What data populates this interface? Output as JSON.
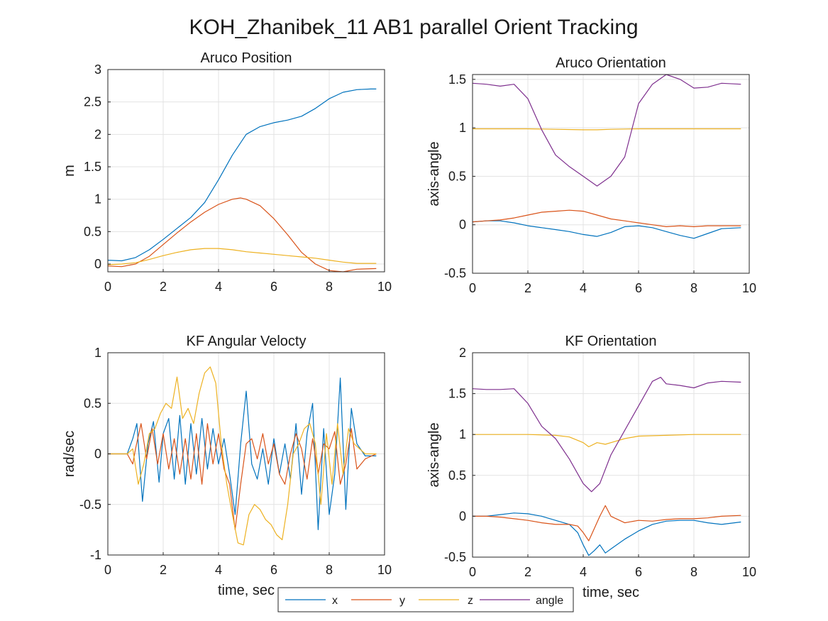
{
  "figure": {
    "title": "KOH_Zhanibek_11 AB1 parallel Orient Tracking",
    "colors": {
      "x": "#0072BD",
      "y": "#D95319",
      "z": "#EDB120",
      "angle": "#7E2F8E",
      "grid": "#e3e3e3",
      "axis": "#262626"
    }
  },
  "legend": {
    "items": [
      {
        "key": "x",
        "label": "x"
      },
      {
        "key": "y",
        "label": "y"
      },
      {
        "key": "z",
        "label": "z"
      },
      {
        "key": "angle",
        "label": "angle"
      }
    ]
  },
  "chart_data": [
    {
      "type": "line",
      "title": "Aruco Position",
      "xlabel": "",
      "ylabel": "m",
      "xlim": [
        0,
        10
      ],
      "ylim": [
        -0.12,
        3
      ],
      "xticks": [
        0,
        2,
        4,
        6,
        8,
        10
      ],
      "yticks": [
        0,
        0.5,
        1,
        1.5,
        2,
        2.5,
        3
      ],
      "grid": true,
      "series": [
        {
          "name": "x",
          "x": [
            0,
            0.5,
            1,
            1.5,
            2,
            2.5,
            3,
            3.5,
            4,
            4.5,
            5,
            5.5,
            6,
            6.5,
            7,
            7.5,
            8,
            8.5,
            9,
            9.5,
            9.7
          ],
          "y": [
            0.06,
            0.05,
            0.1,
            0.22,
            0.38,
            0.55,
            0.72,
            0.95,
            1.3,
            1.68,
            2.0,
            2.12,
            2.18,
            2.22,
            2.28,
            2.4,
            2.55,
            2.65,
            2.69,
            2.7,
            2.7
          ]
        },
        {
          "name": "y",
          "x": [
            0,
            0.5,
            1,
            1.5,
            2,
            2.5,
            3,
            3.5,
            4,
            4.5,
            4.8,
            5,
            5.5,
            6,
            6.5,
            7,
            7.5,
            8,
            8.5,
            9,
            9.7
          ],
          "y": [
            -0.03,
            -0.04,
            0.0,
            0.12,
            0.3,
            0.48,
            0.65,
            0.8,
            0.92,
            1.0,
            1.02,
            1.0,
            0.9,
            0.7,
            0.45,
            0.18,
            0.0,
            -0.1,
            -0.12,
            -0.08,
            -0.07
          ]
        },
        {
          "name": "z",
          "x": [
            0,
            0.5,
            1,
            1.5,
            2,
            2.5,
            3,
            3.5,
            4,
            4.5,
            5,
            5.5,
            6,
            6.5,
            7,
            7.5,
            8,
            8.5,
            9,
            9.7
          ],
          "y": [
            -0.01,
            0.0,
            0.02,
            0.07,
            0.13,
            0.18,
            0.22,
            0.24,
            0.24,
            0.22,
            0.19,
            0.17,
            0.15,
            0.13,
            0.11,
            0.09,
            0.06,
            0.03,
            0.01,
            0.01
          ]
        }
      ]
    },
    {
      "type": "line",
      "title": "Aruco Orientation",
      "xlabel": "",
      "ylabel": "axis-angle",
      "xlim": [
        0,
        10
      ],
      "ylim": [
        -0.5,
        1.55
      ],
      "xticks": [
        0,
        2,
        4,
        6,
        8,
        10
      ],
      "yticks": [
        -0.5,
        0,
        0.5,
        1,
        1.5
      ],
      "grid": true,
      "series": [
        {
          "name": "x",
          "x": [
            0,
            0.5,
            1,
            1.5,
            2,
            2.5,
            3,
            3.5,
            4,
            4.5,
            5,
            5.5,
            6,
            6.5,
            7,
            7.5,
            8,
            8.5,
            9,
            9.7
          ],
          "y": [
            0.03,
            0.04,
            0.04,
            0.02,
            -0.01,
            -0.03,
            -0.05,
            -0.07,
            -0.1,
            -0.12,
            -0.08,
            -0.02,
            -0.01,
            -0.03,
            -0.07,
            -0.11,
            -0.14,
            -0.09,
            -0.04,
            -0.03
          ]
        },
        {
          "name": "y",
          "x": [
            0,
            0.5,
            1,
            1.5,
            2,
            2.5,
            3,
            3.5,
            4,
            4.5,
            5,
            5.5,
            6,
            6.5,
            7,
            7.5,
            8,
            8.5,
            9,
            9.7
          ],
          "y": [
            0.03,
            0.04,
            0.05,
            0.07,
            0.1,
            0.13,
            0.14,
            0.15,
            0.14,
            0.1,
            0.06,
            0.04,
            0.02,
            0.0,
            -0.02,
            -0.01,
            -0.02,
            -0.01,
            -0.01,
            -0.01
          ]
        },
        {
          "name": "z",
          "x": [
            0,
            1,
            2,
            3,
            4,
            4.5,
            5,
            6,
            7,
            8,
            9,
            9.7
          ],
          "y": [
            0.99,
            0.99,
            0.99,
            0.985,
            0.98,
            0.98,
            0.985,
            0.99,
            0.99,
            0.99,
            0.99,
            0.99
          ]
        },
        {
          "name": "angle",
          "x": [
            0,
            0.5,
            1,
            1.5,
            2,
            2.5,
            3,
            3.5,
            4,
            4.5,
            5,
            5.5,
            6,
            6.5,
            7,
            7.5,
            8,
            8.5,
            9,
            9.7
          ],
          "y": [
            1.46,
            1.45,
            1.43,
            1.45,
            1.3,
            0.98,
            0.72,
            0.6,
            0.5,
            0.4,
            0.5,
            0.7,
            1.25,
            1.45,
            1.55,
            1.5,
            1.41,
            1.42,
            1.46,
            1.45
          ]
        }
      ]
    },
    {
      "type": "line",
      "title": "KF Angular Velocty",
      "xlabel": "time, sec",
      "ylabel": "rad/sec",
      "xlim": [
        0,
        10
      ],
      "ylim": [
        -1,
        1
      ],
      "xticks": [
        0,
        2,
        4,
        6,
        8,
        10
      ],
      "yticks": [
        -1,
        -0.5,
        0,
        0.5,
        1
      ],
      "grid": true,
      "series": [
        {
          "name": "x",
          "x": [
            0,
            0.7,
            0.9,
            1.05,
            1.25,
            1.45,
            1.65,
            1.85,
            2.0,
            2.2,
            2.4,
            2.6,
            2.8,
            3.0,
            3.2,
            3.4,
            3.6,
            3.8,
            4.0,
            4.2,
            4.4,
            4.6,
            4.8,
            5.0,
            5.2,
            5.4,
            5.6,
            5.8,
            6.0,
            6.2,
            6.4,
            6.6,
            6.8,
            7.0,
            7.2,
            7.4,
            7.6,
            7.8,
            8.0,
            8.2,
            8.4,
            8.6,
            8.8,
            9.0,
            9.3,
            9.7
          ],
          "y": [
            0.0,
            0.0,
            0.15,
            0.3,
            -0.47,
            0.1,
            0.32,
            -0.28,
            0.2,
            0.35,
            -0.25,
            0.38,
            -0.3,
            0.3,
            -0.2,
            0.35,
            -0.15,
            0.25,
            -0.1,
            0.15,
            -0.2,
            -0.6,
            0.1,
            0.62,
            -0.1,
            -0.25,
            0.05,
            -0.3,
            0.15,
            -0.2,
            0.1,
            -0.25,
            0.3,
            -0.4,
            0.2,
            0.5,
            -0.75,
            0.25,
            -0.6,
            -0.2,
            0.75,
            -0.55,
            0.45,
            0.1,
            -0.02,
            -0.02
          ]
        },
        {
          "name": "y",
          "x": [
            0,
            0.7,
            0.9,
            1.0,
            1.2,
            1.4,
            1.6,
            1.8,
            2.0,
            2.2,
            2.4,
            2.6,
            2.8,
            3.0,
            3.2,
            3.4,
            3.6,
            3.8,
            4.0,
            4.2,
            4.4,
            4.6,
            4.8,
            5.0,
            5.2,
            5.4,
            5.6,
            5.8,
            6.0,
            6.2,
            6.4,
            6.6,
            6.8,
            7.0,
            7.2,
            7.4,
            7.6,
            7.8,
            8.0,
            8.2,
            8.4,
            8.6,
            8.8,
            9.0,
            9.3,
            9.7
          ],
          "y": [
            0.0,
            0.0,
            -0.1,
            0.05,
            0.3,
            -0.05,
            0.25,
            -0.1,
            0.2,
            -0.15,
            0.15,
            -0.2,
            0.15,
            -0.25,
            0.2,
            -0.3,
            0.3,
            -0.1,
            0.2,
            -0.15,
            -0.3,
            -0.75,
            -0.3,
            0.1,
            0.15,
            -0.05,
            0.2,
            -0.1,
            0.1,
            -0.2,
            -0.3,
            0.0,
            0.2,
            0.05,
            -0.25,
            0.15,
            -0.2,
            0.1,
            0.05,
            0.22,
            -0.3,
            -0.1,
            0.25,
            -0.15,
            -0.05,
            0.0
          ]
        },
        {
          "name": "z",
          "x": [
            0,
            0.7,
            0.9,
            1.1,
            1.3,
            1.5,
            1.7,
            1.9,
            2.1,
            2.3,
            2.5,
            2.7,
            2.9,
            3.1,
            3.3,
            3.5,
            3.7,
            3.9,
            4.1,
            4.3,
            4.5,
            4.7,
            4.9,
            5.1,
            5.3,
            5.5,
            5.7,
            5.9,
            6.1,
            6.3,
            6.5,
            6.7,
            6.9,
            7.1,
            7.3,
            7.5,
            7.7,
            7.9,
            8.1,
            8.3,
            8.5,
            8.7,
            8.9,
            9.1,
            9.3,
            9.7
          ],
          "y": [
            0.0,
            0.0,
            0.05,
            -0.3,
            -0.1,
            0.2,
            0.25,
            0.4,
            0.5,
            0.45,
            0.76,
            0.35,
            0.45,
            0.3,
            0.6,
            0.8,
            0.86,
            0.7,
            0.1,
            -0.3,
            -0.6,
            -0.88,
            -0.9,
            -0.6,
            -0.5,
            -0.55,
            -0.65,
            -0.7,
            -0.8,
            -0.85,
            -0.5,
            0.0,
            0.1,
            0.25,
            0.3,
            0.1,
            -0.5,
            0.2,
            -0.3,
            0.3,
            -0.2,
            0.25,
            0.1,
            0.05,
            0.0,
            0.0
          ]
        }
      ]
    },
    {
      "type": "line",
      "title": "KF Orientation",
      "xlabel": "time, sec",
      "ylabel": "axis-angle",
      "xlim": [
        0,
        10
      ],
      "ylim": [
        -0.5,
        2
      ],
      "xticks": [
        0,
        2,
        4,
        6,
        8,
        10
      ],
      "yticks": [
        -0.5,
        0,
        0.5,
        1,
        1.5,
        2
      ],
      "grid": true,
      "series": [
        {
          "name": "x",
          "x": [
            0,
            0.5,
            1,
            1.5,
            2,
            2.5,
            3,
            3.5,
            3.8,
            4.0,
            4.2,
            4.4,
            4.6,
            4.8,
            5.0,
            5.5,
            6,
            6.5,
            7,
            7.5,
            8,
            8.5,
            9,
            9.7
          ],
          "y": [
            0.0,
            0.0,
            0.02,
            0.04,
            0.03,
            0.0,
            -0.05,
            -0.1,
            -0.2,
            -0.35,
            -0.48,
            -0.42,
            -0.35,
            -0.45,
            -0.4,
            -0.28,
            -0.18,
            -0.1,
            -0.06,
            -0.05,
            -0.05,
            -0.08,
            -0.1,
            -0.07
          ]
        },
        {
          "name": "y",
          "x": [
            0,
            0.5,
            1,
            1.5,
            2,
            2.5,
            3,
            3.5,
            3.8,
            4.0,
            4.2,
            4.4,
            4.6,
            4.8,
            5.0,
            5.5,
            6,
            6.5,
            7,
            7.5,
            8,
            8.5,
            9,
            9.7
          ],
          "y": [
            0.0,
            0.0,
            -0.01,
            -0.03,
            -0.05,
            -0.08,
            -0.1,
            -0.1,
            -0.12,
            -0.2,
            -0.3,
            -0.15,
            0.0,
            0.13,
            0.0,
            -0.08,
            -0.05,
            -0.06,
            -0.04,
            -0.03,
            -0.03,
            -0.02,
            0.0,
            0.01
          ]
        },
        {
          "name": "z",
          "x": [
            0,
            1,
            2,
            3,
            3.5,
            4.0,
            4.2,
            4.5,
            4.8,
            5.0,
            5.5,
            6,
            7,
            8,
            9,
            9.7
          ],
          "y": [
            1.0,
            1.0,
            1.0,
            0.99,
            0.97,
            0.9,
            0.85,
            0.9,
            0.88,
            0.9,
            0.95,
            0.98,
            0.99,
            1.0,
            1.0,
            1.0
          ]
        },
        {
          "name": "angle",
          "x": [
            0,
            0.5,
            1,
            1.5,
            2,
            2.5,
            3,
            3.5,
            4,
            4.3,
            4.6,
            5,
            5.5,
            6,
            6.5,
            6.8,
            7,
            7.5,
            8,
            8.5,
            9,
            9.7
          ],
          "y": [
            1.56,
            1.55,
            1.55,
            1.56,
            1.38,
            1.1,
            0.95,
            0.7,
            0.4,
            0.3,
            0.4,
            0.75,
            1.05,
            1.35,
            1.65,
            1.7,
            1.62,
            1.6,
            1.57,
            1.63,
            1.65,
            1.64
          ]
        }
      ]
    }
  ]
}
